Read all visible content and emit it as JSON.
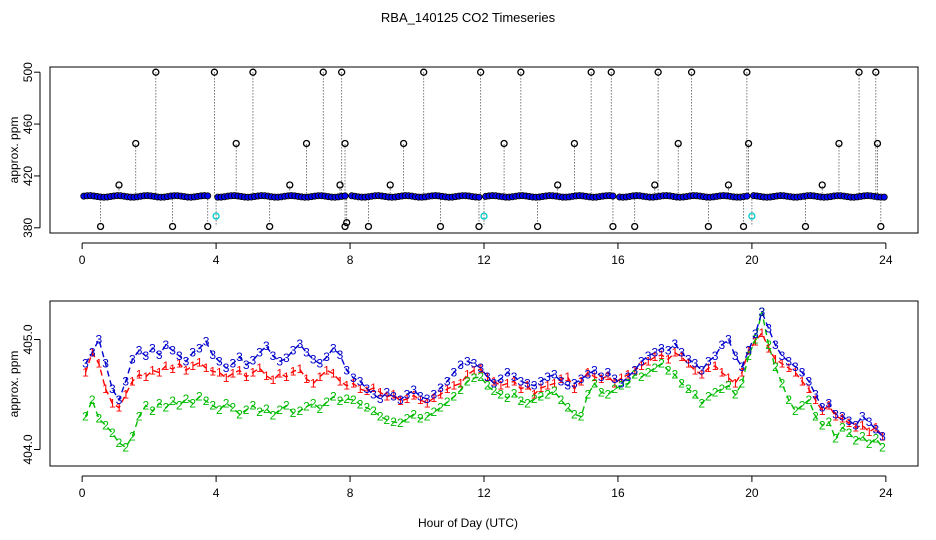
{
  "chart_data": [
    {
      "type": "scatter",
      "title": "RBA_140125  CO2 Timeseries",
      "xlabel": "",
      "ylabel": "approx. ppm",
      "xlim": [
        -0.96,
        24.96
      ],
      "ylim": [
        376,
        504
      ],
      "x_ticks": [
        "0",
        "4",
        "8",
        "12",
        "16",
        "20",
        "24"
      ],
      "y_ticks": [
        "380",
        "420",
        "460",
        "500"
      ],
      "colors": {
        "open_circles": "#000000",
        "filled_points": "#0000ff",
        "low_points": "#00cccc",
        "drop_lines": "#000000"
      },
      "baseline_ppm": 404.2,
      "spike_ppm": [
        500,
        445,
        413,
        445,
        500,
        413,
        445,
        500,
        413,
        445,
        500,
        500,
        445,
        413,
        500,
        445,
        500,
        445,
        500,
        413,
        500,
        500,
        445,
        413,
        500,
        413,
        445,
        500,
        413,
        445,
        500,
        500,
        445,
        500
      ],
      "spike_hours": [
        2.2,
        1.6,
        1.1,
        4.6,
        5.1,
        6.2,
        6.7,
        7.2,
        7.7,
        7.85,
        3.95,
        10.2,
        9.6,
        9.2,
        11.9,
        12.6,
        13.1,
        14.7,
        15.2,
        14.2,
        15.8,
        17.2,
        17.8,
        17.1,
        18.2,
        19.3,
        19.9,
        19.85,
        22.1,
        22.6,
        23.2,
        23.7,
        23.75,
        7.75
      ],
      "low_ppm": [
        381,
        381,
        381,
        381,
        381,
        381,
        381,
        381,
        381,
        381,
        381,
        381,
        381,
        381,
        381,
        381,
        381,
        381,
        384
      ],
      "low_hours": [
        0.55,
        2.7,
        3.75,
        5.6,
        8.55,
        10.7,
        11.85,
        13.6,
        15.85,
        16.5,
        18.7,
        19.75,
        21.6,
        23.85,
        7.85,
        4.0,
        12.0,
        20.0,
        7.9
      ],
      "gap_hours": [
        3.9,
        7.95,
        11.95,
        15.95,
        19.95
      ]
    },
    {
      "type": "line",
      "title": "",
      "xlabel": "Hour of Day (UTC)",
      "ylabel": "approx. ppm",
      "xlim": [
        -0.96,
        24.96
      ],
      "ylim": [
        403.85,
        405.35
      ],
      "x_ticks": [
        "0",
        "4",
        "8",
        "12",
        "16",
        "20",
        "24"
      ],
      "y_ticks": [
        "404.0",
        "405.0"
      ],
      "series": [
        {
          "name": "1",
          "marker": "1",
          "color": "#ff0000",
          "x": [
            0.1,
            0.3,
            0.5,
            0.7,
            0.9,
            1.1,
            1.3,
            1.5,
            1.7,
            1.9,
            2.1,
            2.3,
            2.5,
            2.7,
            2.9,
            3.1,
            3.3,
            3.5,
            3.7,
            3.9,
            4.1,
            4.3,
            4.5,
            4.7,
            4.9,
            5.1,
            5.3,
            5.5,
            5.7,
            5.9,
            6.1,
            6.3,
            6.5,
            6.7,
            6.9,
            7.1,
            7.3,
            7.5,
            7.7,
            7.9,
            8.1,
            8.3,
            8.5,
            8.7,
            8.9,
            9.1,
            9.3,
            9.5,
            9.7,
            9.9,
            10.1,
            10.3,
            10.5,
            10.7,
            10.9,
            11.1,
            11.3,
            11.5,
            11.7,
            11.9,
            12.1,
            12.3,
            12.5,
            12.7,
            12.9,
            13.1,
            13.3,
            13.5,
            13.7,
            13.9,
            14.1,
            14.3,
            14.5,
            14.7,
            14.9,
            15.1,
            15.3,
            15.5,
            15.7,
            15.9,
            16.1,
            16.3,
            16.5,
            16.7,
            16.9,
            17.1,
            17.3,
            17.5,
            17.7,
            17.9,
            18.1,
            18.3,
            18.5,
            18.7,
            18.9,
            19.1,
            19.3,
            19.5,
            19.7,
            19.9,
            20.1,
            20.3,
            20.5,
            20.7,
            20.9,
            21.1,
            21.3,
            21.5,
            21.7,
            21.9,
            22.1,
            22.3,
            22.5,
            22.7,
            22.9,
            23.1,
            23.3,
            23.5,
            23.7,
            23.9
          ],
          "values": [
            404.7,
            404.88,
            404.78,
            404.55,
            404.42,
            404.38,
            404.5,
            404.62,
            404.68,
            404.66,
            404.72,
            404.7,
            404.76,
            404.73,
            404.78,
            404.72,
            404.76,
            404.79,
            404.74,
            404.71,
            404.7,
            404.65,
            404.69,
            404.72,
            404.66,
            404.7,
            404.74,
            404.67,
            404.63,
            404.69,
            404.66,
            404.71,
            404.73,
            404.64,
            404.6,
            404.66,
            404.72,
            404.69,
            404.62,
            404.58,
            404.6,
            404.55,
            404.53,
            404.56,
            404.52,
            404.48,
            404.5,
            404.44,
            404.46,
            404.49,
            404.45,
            404.42,
            404.47,
            404.5,
            404.55,
            404.58,
            404.6,
            404.68,
            404.72,
            404.73,
            404.66,
            404.62,
            404.58,
            404.6,
            404.62,
            404.55,
            404.58,
            404.5,
            404.56,
            404.58,
            404.6,
            404.64,
            404.66,
            404.55,
            404.62,
            404.7,
            404.66,
            404.64,
            404.67,
            404.6,
            404.65,
            404.68,
            404.72,
            404.76,
            404.8,
            404.84,
            404.86,
            404.82,
            404.88,
            404.84,
            404.78,
            404.72,
            404.68,
            404.74,
            404.76,
            404.7,
            404.65,
            404.6,
            404.7,
            404.9,
            404.98,
            405.06,
            404.92,
            404.82,
            404.78,
            404.74,
            404.7,
            404.62,
            404.55,
            404.45,
            404.35,
            404.4,
            404.3,
            404.28,
            404.24,
            404.2,
            404.22,
            404.16,
            404.2,
            404.12
          ]
        },
        {
          "name": "2",
          "marker": "2",
          "color": "#00bb00",
          "x": [
            0.1,
            0.3,
            0.5,
            0.7,
            0.9,
            1.1,
            1.3,
            1.5,
            1.7,
            1.9,
            2.1,
            2.3,
            2.5,
            2.7,
            2.9,
            3.1,
            3.3,
            3.5,
            3.7,
            3.9,
            4.1,
            4.3,
            4.5,
            4.7,
            4.9,
            5.1,
            5.3,
            5.5,
            5.7,
            5.9,
            6.1,
            6.3,
            6.5,
            6.7,
            6.9,
            7.1,
            7.3,
            7.5,
            7.7,
            7.9,
            8.1,
            8.3,
            8.5,
            8.7,
            8.9,
            9.1,
            9.3,
            9.5,
            9.7,
            9.9,
            10.1,
            10.3,
            10.5,
            10.7,
            10.9,
            11.1,
            11.3,
            11.5,
            11.7,
            11.9,
            12.1,
            12.3,
            12.5,
            12.7,
            12.9,
            13.1,
            13.3,
            13.5,
            13.7,
            13.9,
            14.1,
            14.3,
            14.5,
            14.7,
            14.9,
            15.1,
            15.3,
            15.5,
            15.7,
            15.9,
            16.1,
            16.3,
            16.5,
            16.7,
            16.9,
            17.1,
            17.3,
            17.5,
            17.7,
            17.9,
            18.1,
            18.3,
            18.5,
            18.7,
            18.9,
            19.1,
            19.3,
            19.5,
            19.7,
            19.9,
            20.1,
            20.3,
            20.5,
            20.7,
            20.9,
            21.1,
            21.3,
            21.5,
            21.7,
            21.9,
            22.1,
            22.3,
            22.5,
            22.7,
            22.9,
            23.1,
            23.3,
            23.5,
            23.7,
            23.9
          ],
          "values": [
            404.3,
            404.45,
            404.28,
            404.22,
            404.15,
            404.06,
            404.02,
            404.12,
            404.3,
            404.4,
            404.35,
            404.42,
            404.38,
            404.44,
            404.4,
            404.46,
            404.42,
            404.48,
            404.44,
            404.4,
            404.36,
            404.42,
            404.38,
            404.32,
            404.36,
            404.4,
            404.34,
            404.37,
            404.31,
            404.36,
            404.4,
            404.33,
            404.35,
            404.39,
            404.42,
            404.37,
            404.43,
            404.48,
            404.44,
            404.46,
            404.45,
            404.41,
            404.38,
            404.35,
            404.3,
            404.27,
            404.25,
            404.24,
            404.28,
            404.32,
            404.28,
            404.3,
            404.34,
            404.38,
            404.43,
            404.48,
            404.54,
            404.62,
            404.65,
            404.66,
            404.58,
            404.53,
            404.5,
            404.47,
            404.51,
            404.44,
            404.42,
            404.46,
            404.48,
            404.5,
            404.53,
            404.45,
            404.38,
            404.32,
            404.3,
            404.5,
            404.6,
            404.52,
            404.5,
            404.55,
            404.58,
            404.6,
            404.68,
            404.66,
            404.7,
            404.74,
            404.78,
            404.72,
            404.68,
            404.6,
            404.55,
            404.5,
            404.42,
            404.48,
            404.52,
            404.55,
            404.58,
            404.5,
            404.6,
            404.85,
            405.0,
            405.25,
            404.95,
            404.75,
            404.6,
            404.45,
            404.35,
            404.4,
            404.45,
            404.3,
            404.22,
            404.25,
            404.1,
            404.2,
            404.15,
            404.08,
            404.12,
            404.05,
            404.1,
            404.02
          ]
        },
        {
          "name": "3",
          "marker": "3",
          "color": "#0000cc",
          "x": [
            0.1,
            0.3,
            0.5,
            0.7,
            0.9,
            1.1,
            1.3,
            1.5,
            1.7,
            1.9,
            2.1,
            2.3,
            2.5,
            2.7,
            2.9,
            3.1,
            3.3,
            3.5,
            3.7,
            3.9,
            4.1,
            4.3,
            4.5,
            4.7,
            4.9,
            5.1,
            5.3,
            5.5,
            5.7,
            5.9,
            6.1,
            6.3,
            6.5,
            6.7,
            6.9,
            7.1,
            7.3,
            7.5,
            7.7,
            7.9,
            8.1,
            8.3,
            8.5,
            8.7,
            8.9,
            9.1,
            9.3,
            9.5,
            9.7,
            9.9,
            10.1,
            10.3,
            10.5,
            10.7,
            10.9,
            11.1,
            11.3,
            11.5,
            11.7,
            11.9,
            12.1,
            12.3,
            12.5,
            12.7,
            12.9,
            13.1,
            13.3,
            13.5,
            13.7,
            13.9,
            14.1,
            14.3,
            14.5,
            14.7,
            14.9,
            15.1,
            15.3,
            15.5,
            15.7,
            15.9,
            16.1,
            16.3,
            16.5,
            16.7,
            16.9,
            17.1,
            17.3,
            17.5,
            17.7,
            17.9,
            18.1,
            18.3,
            18.5,
            18.7,
            18.9,
            19.1,
            19.3,
            19.5,
            19.7,
            19.9,
            20.1,
            20.3,
            20.5,
            20.7,
            20.9,
            21.1,
            21.3,
            21.5,
            21.7,
            21.9,
            22.1,
            22.3,
            22.5,
            22.7,
            22.9,
            23.1,
            23.3,
            23.5,
            23.7,
            23.9
          ],
          "values": [
            404.78,
            404.88,
            405.0,
            404.78,
            404.55,
            404.45,
            404.62,
            404.82,
            404.9,
            404.85,
            404.92,
            404.86,
            404.95,
            404.9,
            404.85,
            404.8,
            404.88,
            404.92,
            404.98,
            404.86,
            404.8,
            404.74,
            404.78,
            404.84,
            404.77,
            404.81,
            404.88,
            404.94,
            404.85,
            404.8,
            404.83,
            404.9,
            404.96,
            404.88,
            404.82,
            404.78,
            404.84,
            404.92,
            404.86,
            404.72,
            404.65,
            404.62,
            404.55,
            404.5,
            404.46,
            404.52,
            404.48,
            404.45,
            404.5,
            404.54,
            404.48,
            404.46,
            404.5,
            404.56,
            404.62,
            404.7,
            404.77,
            404.8,
            404.78,
            404.74,
            404.66,
            404.6,
            404.64,
            404.7,
            404.66,
            404.62,
            404.6,
            404.58,
            404.62,
            404.66,
            404.68,
            404.62,
            404.58,
            404.6,
            404.64,
            404.68,
            404.72,
            404.66,
            404.7,
            404.64,
            404.6,
            404.66,
            404.72,
            404.8,
            404.85,
            404.88,
            404.92,
            404.9,
            404.96,
            404.88,
            404.82,
            404.78,
            404.72,
            404.8,
            404.85,
            404.95,
            405.0,
            404.85,
            404.75,
            404.9,
            405.05,
            405.25,
            405.1,
            404.95,
            404.85,
            404.8,
            404.75,
            404.7,
            404.62,
            404.5,
            404.38,
            404.42,
            404.32,
            404.3,
            404.26,
            404.22,
            404.3,
            404.25,
            404.18,
            404.12
          ]
        }
      ]
    }
  ]
}
